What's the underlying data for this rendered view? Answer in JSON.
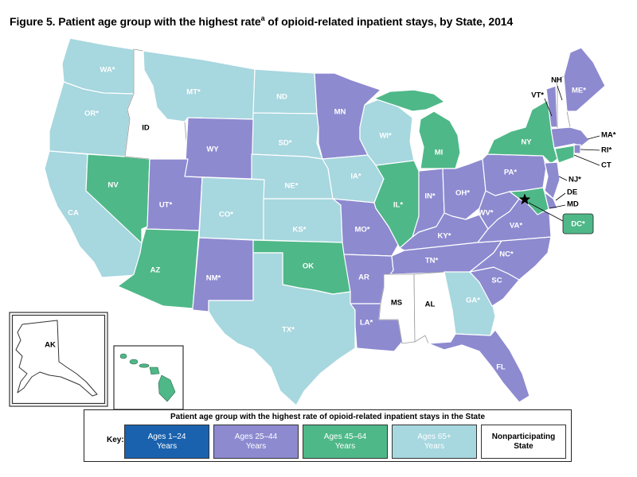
{
  "title": {
    "main": "Figure 5. Patient age group with the highest rate",
    "sup": "a",
    "rest": " of opioid-related inpatient stays, by State, 2014"
  },
  "legend": {
    "header": "Patient age group with the highest rate of opioid-related inpatient stays in the State",
    "key_label": "Key:",
    "items": [
      {
        "line1": "Ages 1–24",
        "line2": "Years",
        "color": "#1A62AE"
      },
      {
        "line1": "Ages 25–44",
        "line2": "Years",
        "color": "#8D8AD0"
      },
      {
        "line1": "Ages 45–64",
        "line2": "Years",
        "color": "#4FB888"
      },
      {
        "line1": "Ages 65+",
        "line2": "Years",
        "color": "#A7D7DF"
      },
      {
        "line1": "Nonparticipating",
        "line2": "State",
        "color": "#FFFFFF"
      }
    ]
  },
  "states": {
    "WA": {
      "label": "WA*",
      "group": "Ages 65+"
    },
    "OR": {
      "label": "OR*",
      "group": "Ages 65+"
    },
    "CA": {
      "label": "CA",
      "group": "Ages 65+"
    },
    "NV": {
      "label": "NV",
      "group": "Ages 45–64"
    },
    "ID": {
      "label": "ID",
      "group": "Nonparticipating"
    },
    "MT": {
      "label": "MT*",
      "group": "Ages 65+"
    },
    "WY": {
      "label": "WY",
      "group": "Ages 25–44"
    },
    "UT": {
      "label": "UT*",
      "group": "Ages 25–44"
    },
    "CO": {
      "label": "CO*",
      "group": "Ages 65+"
    },
    "AZ": {
      "label": "AZ",
      "group": "Ages 45–64"
    },
    "NM": {
      "label": "NM*",
      "group": "Ages 25–44"
    },
    "ND": {
      "label": "ND",
      "group": "Ages 65+"
    },
    "SD": {
      "label": "SD*",
      "group": "Ages 65+"
    },
    "NE": {
      "label": "NE*",
      "group": "Ages 65+"
    },
    "KS": {
      "label": "KS*",
      "group": "Ages 65+"
    },
    "OK": {
      "label": "OK",
      "group": "Ages 45–64"
    },
    "TX": {
      "label": "TX*",
      "group": "Ages 65+"
    },
    "MN": {
      "label": "MN",
      "group": "Ages 25–44"
    },
    "IA": {
      "label": "IA*",
      "group": "Ages 65+"
    },
    "MO": {
      "label": "MO*",
      "group": "Ages 25–44"
    },
    "AR": {
      "label": "AR",
      "group": "Ages 25–44"
    },
    "LA": {
      "label": "LA*",
      "group": "Ages 25–44"
    },
    "WI": {
      "label": "WI*",
      "group": "Ages 65+"
    },
    "IL": {
      "label": "IL*",
      "group": "Ages 45–64"
    },
    "MI": {
      "label": "MI",
      "group": "Ages 45–64"
    },
    "IN": {
      "label": "IN*",
      "group": "Ages 25–44"
    },
    "OH": {
      "label": "OH*",
      "group": "Ages 25–44"
    },
    "KY": {
      "label": "KY*",
      "group": "Ages 25–44"
    },
    "TN": {
      "label": "TN*",
      "group": "Ages 25–44"
    },
    "MS": {
      "label": "MS",
      "group": "Nonparticipating"
    },
    "AL": {
      "label": "AL",
      "group": "Nonparticipating"
    },
    "GA": {
      "label": "GA*",
      "group": "Ages 65+"
    },
    "FL": {
      "label": "FL",
      "group": "Ages 25–44"
    },
    "SC": {
      "label": "SC",
      "group": "Ages 25–44"
    },
    "NC": {
      "label": "NC*",
      "group": "Ages 25–44"
    },
    "VA": {
      "label": "VA*",
      "group": "Ages 25–44"
    },
    "WV": {
      "label": "WV*",
      "group": "Ages 25–44"
    },
    "PA": {
      "label": "PA*",
      "group": "Ages 25–44"
    },
    "NY": {
      "label": "NY",
      "group": "Ages 45–64"
    },
    "NJ": {
      "label": "NJ*",
      "group": "Ages 25–44"
    },
    "DE": {
      "label": "DE",
      "group": "Ages 25–44"
    },
    "MD": {
      "label": "MD",
      "group": "Ages 45–64"
    },
    "DC": {
      "label": "DC*",
      "group": "Ages 45–64"
    },
    "VT": {
      "label": "VT*",
      "group": "Ages 25–44"
    },
    "NH": {
      "label": "NH",
      "group": "Nonparticipating"
    },
    "ME": {
      "label": "ME*",
      "group": "Ages 25–44"
    },
    "MA": {
      "label": "MA*",
      "group": "Ages 25–44"
    },
    "RI": {
      "label": "RI*",
      "group": "Ages 25–44"
    },
    "CT": {
      "label": "CT",
      "group": "Ages 45–64"
    },
    "AK": {
      "label": "AK",
      "group": "Nonparticipating"
    },
    "HI": {
      "label": "HI*",
      "group": "Ages 45–64"
    }
  }
}
